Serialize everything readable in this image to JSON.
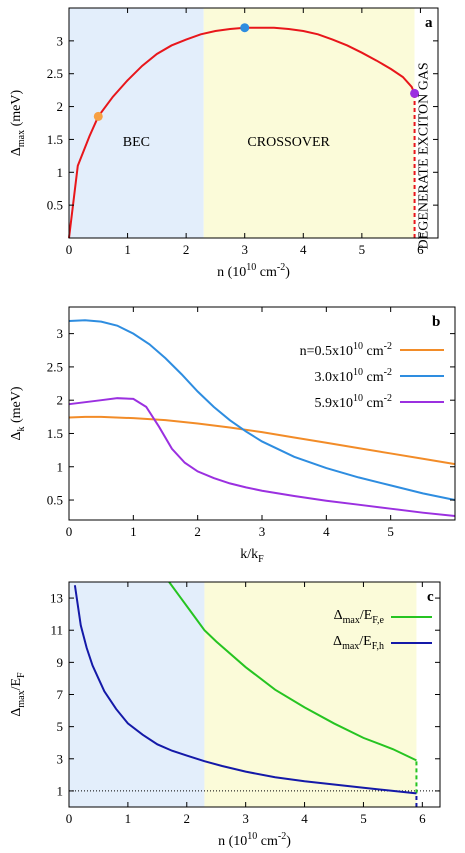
{
  "chart_data": [
    {
      "panel": "a",
      "type": "line",
      "xlabel": "n (10^10 cm^-2)",
      "ylabel": "Δmax (meV)",
      "xlim": [
        0,
        6.3
      ],
      "ylim": [
        0,
        3.5
      ],
      "xticks": [
        "0",
        "1",
        "2",
        "3",
        "4",
        "5",
        "6"
      ],
      "yticks": [
        "0.5",
        "1",
        "1.5",
        "2",
        "2.5",
        "3"
      ],
      "panel_label": "a",
      "regions": [
        {
          "label": "BEC",
          "x0": 0,
          "x1": 2.3,
          "color": "#e3eefb"
        },
        {
          "label": "CROSSOVER",
          "x0": 2.3,
          "x1": 5.9,
          "color": "#fbfbd9"
        },
        {
          "label": "DEGENERATE EXCITON GAS",
          "x0": 5.9,
          "x1": 6.3,
          "color": "#ffffff"
        }
      ],
      "series": [
        {
          "color": "#e8161b",
          "x": [
            0,
            0.15,
            0.35,
            0.5,
            0.75,
            1.0,
            1.25,
            1.5,
            1.75,
            2.0,
            2.25,
            2.5,
            2.75,
            3.0,
            3.25,
            3.5,
            3.75,
            4.0,
            4.25,
            4.5,
            4.75,
            5.0,
            5.25,
            5.5,
            5.7,
            5.85,
            5.9
          ],
          "y": [
            0.0,
            1.1,
            1.55,
            1.85,
            2.15,
            2.4,
            2.62,
            2.8,
            2.93,
            3.02,
            3.1,
            3.15,
            3.18,
            3.2,
            3.2,
            3.2,
            3.18,
            3.15,
            3.1,
            3.02,
            2.93,
            2.82,
            2.7,
            2.57,
            2.45,
            2.3,
            2.2
          ]
        }
      ],
      "markers": [
        {
          "x": 0.5,
          "y": 1.85,
          "color": "#f7a043"
        },
        {
          "x": 3.0,
          "y": 3.2,
          "color": "#2e8de0"
        },
        {
          "x": 5.9,
          "y": 2.2,
          "color": "#9b30e0"
        }
      ],
      "dashed_line": {
        "x": 5.9,
        "y0": 0,
        "y1": 2.2,
        "color": "#e8161b"
      }
    },
    {
      "panel": "b",
      "type": "line",
      "xlabel": "k/kF",
      "ylabel": "Δk (meV)",
      "xlim": [
        0,
        6.0
      ],
      "ylim": [
        0.2,
        3.4
      ],
      "xticks": [
        "0",
        "1",
        "2",
        "3",
        "4",
        "5"
      ],
      "yticks": [
        "0.5",
        "1",
        "1.5",
        "2",
        "2.5",
        "3"
      ],
      "panel_label": "b",
      "series": [
        {
          "name": "n=0.5x10^10 cm^-2",
          "color": "#f28c28",
          "x": [
            0,
            0.25,
            0.5,
            1.0,
            1.5,
            2.0,
            2.5,
            3.0,
            3.5,
            4.0,
            4.5,
            5.0,
            5.5,
            6.0
          ],
          "y": [
            1.74,
            1.75,
            1.75,
            1.73,
            1.7,
            1.65,
            1.59,
            1.52,
            1.44,
            1.36,
            1.28,
            1.2,
            1.12,
            1.04
          ]
        },
        {
          "name": "3.0x10^10 cm^-2",
          "color": "#2e8de0",
          "x": [
            0,
            0.25,
            0.5,
            0.75,
            1.0,
            1.25,
            1.5,
            1.75,
            2.0,
            2.25,
            2.5,
            2.75,
            3.0,
            3.5,
            4.0,
            4.5,
            5.0,
            5.5,
            6.0
          ],
          "y": [
            3.19,
            3.2,
            3.18,
            3.12,
            3.0,
            2.84,
            2.63,
            2.39,
            2.13,
            1.9,
            1.7,
            1.53,
            1.38,
            1.15,
            0.98,
            0.84,
            0.72,
            0.6,
            0.5
          ]
        },
        {
          "name": "5.9x10^10 cm^-2",
          "color": "#9b30e0",
          "x": [
            0,
            0.25,
            0.5,
            0.75,
            1.0,
            1.2,
            1.4,
            1.6,
            1.8,
            2.0,
            2.25,
            2.5,
            2.75,
            3.0,
            3.5,
            4.0,
            4.5,
            5.0,
            5.5,
            6.0
          ],
          "y": [
            1.94,
            1.97,
            2.0,
            2.03,
            2.02,
            1.9,
            1.6,
            1.27,
            1.06,
            0.93,
            0.83,
            0.75,
            0.69,
            0.64,
            0.56,
            0.49,
            0.43,
            0.37,
            0.31,
            0.26
          ]
        }
      ]
    },
    {
      "panel": "c",
      "type": "line",
      "xlabel": "n (10^10 cm^-2)",
      "ylabel": "Δmax/EF",
      "xlim": [
        0,
        6.3
      ],
      "ylim": [
        0,
        14
      ],
      "xticks": [
        "0",
        "1",
        "2",
        "3",
        "4",
        "5",
        "6"
      ],
      "yticks": [
        "1",
        "3",
        "5",
        "7",
        "9",
        "11",
        "13"
      ],
      "panel_label": "c",
      "regions": [
        {
          "x0": 0,
          "x1": 2.3,
          "color": "#e3eefb"
        },
        {
          "x0": 2.3,
          "x1": 5.9,
          "color": "#fbfbd9"
        }
      ],
      "series": [
        {
          "name": "Δmax/EF,e",
          "color": "#26c421",
          "x": [
            1.7,
            1.9,
            2.1,
            2.3,
            2.5,
            3.0,
            3.5,
            4.0,
            4.5,
            5.0,
            5.5,
            5.9
          ],
          "y": [
            14.0,
            13.0,
            12.0,
            11.0,
            10.3,
            8.7,
            7.3,
            6.2,
            5.2,
            4.3,
            3.6,
            2.9
          ]
        },
        {
          "name": "Δmax/EF,h",
          "color": "#1419a8",
          "x": [
            0.1,
            0.2,
            0.3,
            0.4,
            0.5,
            0.6,
            0.8,
            1.0,
            1.25,
            1.5,
            1.75,
            2.0,
            2.3,
            2.6,
            3.0,
            3.5,
            4.0,
            4.5,
            5.0,
            5.5,
            5.9
          ],
          "y": [
            13.8,
            11.3,
            9.9,
            8.8,
            8.0,
            7.2,
            6.1,
            5.2,
            4.5,
            3.9,
            3.5,
            3.2,
            2.85,
            2.55,
            2.2,
            1.85,
            1.6,
            1.4,
            1.2,
            1.0,
            0.85
          ]
        }
      ],
      "reference_line": {
        "y": 1,
        "style": "dotted"
      },
      "dashed_lines": [
        {
          "x": 5.9,
          "y0": 0,
          "y1": 0.85,
          "color": "#1419a8"
        },
        {
          "x": 5.9,
          "y0": 0.85,
          "y1": 2.9,
          "color": "#26c421"
        }
      ]
    }
  ],
  "text": {
    "a_xlabel_main": "n (10",
    "a_xlabel_exp1": "10",
    "a_xlabel_mid": " cm",
    "a_xlabel_exp2": "-2",
    "a_xlabel_end": ")",
    "a_ylabel_main": "Δ",
    "a_ylabel_sub": "max",
    "a_ylabel_end": " (meV)",
    "b_xlabel_main": "k/k",
    "b_xlabel_sub": "F",
    "b_ylabel_main": "Δ",
    "b_ylabel_sub": "k",
    "b_ylabel_end": " (meV)",
    "c_ylabel_main": "Δ",
    "c_ylabel_sub1": "max",
    "c_ylabel_mid": "/E",
    "c_ylabel_sub2": "F",
    "region_bec": "BEC",
    "region_crossover": "CROSSOVER",
    "region_degenerate": "DEGENERATE EXCITON GAS",
    "legend_b": [
      {
        "main": "n=0.5x10",
        "exp1": "10",
        "mid": " cm",
        "exp2": "-2"
      },
      {
        "main": "3.0x10",
        "exp1": "10",
        "mid": " cm",
        "exp2": "-2"
      },
      {
        "main": "5.9x10",
        "exp1": "10",
        "mid": " cm",
        "exp2": "-2"
      }
    ],
    "legend_c": [
      {
        "main": "Δ",
        "sub1": "max",
        "mid": "/E",
        "sub2": "F,e"
      },
      {
        "main": "Δ",
        "sub1": "max",
        "mid": "/E",
        "sub2": "F,h"
      }
    ]
  }
}
